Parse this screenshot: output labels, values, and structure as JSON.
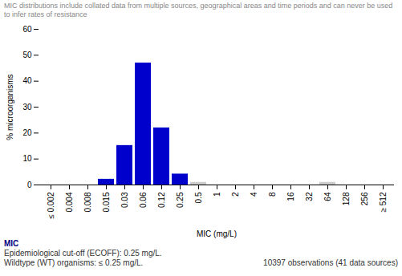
{
  "chart_data": {
    "type": "bar",
    "subtitle": "MIC distributions include collated data from multiple sources, geographical areas and time periods and can never be used to infer rates of resistance",
    "categories": [
      "≤ 0.002",
      "0.004",
      "0.008",
      "0.015",
      "0.03",
      "0.06",
      "0.12",
      "0.25",
      "0.5",
      "1",
      "2",
      "4",
      "8",
      "16",
      "32",
      "64",
      "128",
      "256",
      "≥ 512"
    ],
    "values": [
      0,
      0,
      0,
      2.2,
      15.2,
      47.0,
      22.0,
      4.2,
      1.0,
      0,
      0,
      0,
      0,
      0,
      0,
      1.0,
      0,
      0,
      0
    ],
    "colors": [
      "#0000cc",
      "#0000cc",
      "#0000cc",
      "#0000cc",
      "#0000cc",
      "#0000cc",
      "#0000cc",
      "#0000cc",
      "#cccccc",
      "#cccccc",
      "#cccccc",
      "#cccccc",
      "#cccccc",
      "#cccccc",
      "#cccccc",
      "#cccccc",
      "#cccccc",
      "#cccccc",
      "#cccccc"
    ],
    "xlabel": "MIC (mg/L)",
    "ylabel": "% microorganisms",
    "ylim": [
      0,
      60
    ],
    "yticks": [
      0,
      10,
      20,
      30,
      40,
      50,
      60
    ],
    "grid": false,
    "annotations": [
      {
        "text": "MIC",
        "color": "#000080"
      },
      {
        "text": "Epidemiological cut-off (ECOFF): 0.25 mg/L.",
        "color": "#333333"
      },
      {
        "text": "Wildtype (WT) organisms: ≤ 0.25 mg/L.",
        "color": "#333333"
      },
      {
        "text": "10397 observations (41 data sources)",
        "color": "#333333"
      }
    ]
  }
}
